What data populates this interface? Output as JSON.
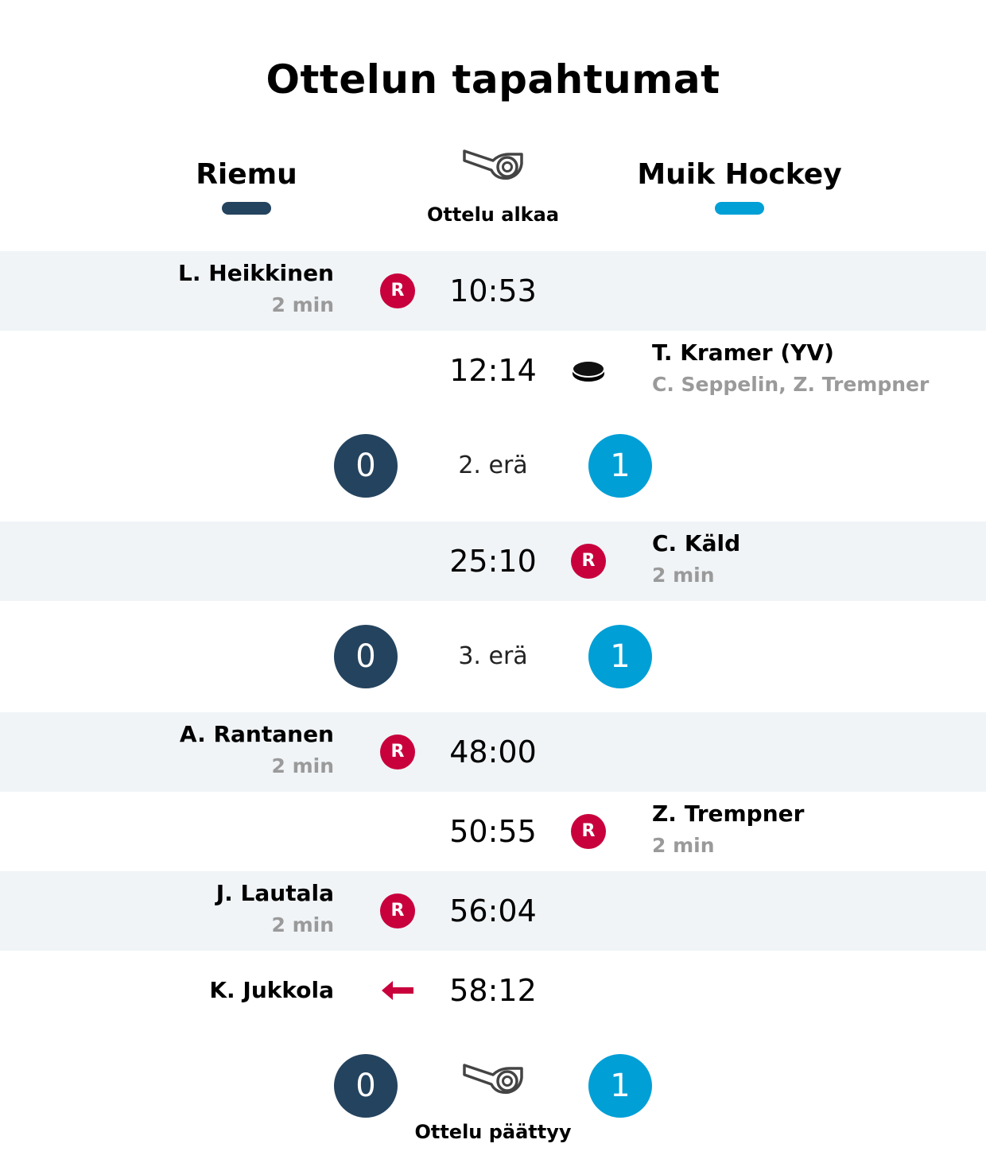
{
  "title": "Ottelun tapahtumat",
  "teams": {
    "home": {
      "name": "Riemu",
      "color": "#24435e"
    },
    "away": {
      "name": "Muik Hockey",
      "color": "#009fd6"
    }
  },
  "start": {
    "label": "Ottelu alkaa",
    "icon": "whistle-icon"
  },
  "events": [
    {
      "time": "10:53",
      "side": "home",
      "type": "penalty",
      "badge": "R",
      "name": "L. Heikkinen",
      "detail": "2 min"
    },
    {
      "time": "12:14",
      "side": "away",
      "type": "goal",
      "icon": "puck-icon",
      "name": "T. Kramer (YV)",
      "detail": "C. Seppelin, Z. Trempner"
    },
    {
      "time": "25:10",
      "side": "away",
      "type": "penalty",
      "badge": "R",
      "name": "C. Käld",
      "detail": "2 min"
    },
    {
      "time": "48:00",
      "side": "home",
      "type": "penalty",
      "badge": "R",
      "name": "A. Rantanen",
      "detail": "2 min"
    },
    {
      "time": "50:55",
      "side": "away",
      "type": "penalty",
      "badge": "R",
      "name": "Z. Trempner",
      "detail": "2 min"
    },
    {
      "time": "56:04",
      "side": "home",
      "type": "penalty",
      "badge": "R",
      "name": "J. Lautala",
      "detail": "2 min"
    },
    {
      "time": "58:12",
      "side": "home",
      "type": "goalie-out",
      "icon": "arrow-left-icon",
      "name": "K. Jukkola"
    }
  ],
  "period_breaks": [
    {
      "label": "2. erä",
      "home_score": "0",
      "away_score": "1"
    },
    {
      "label": "3. erä",
      "home_score": "0",
      "away_score": "1"
    }
  ],
  "end": {
    "label": "Ottelu päättyy",
    "icon": "whistle-icon",
    "home_score": "0",
    "away_score": "1"
  },
  "colors": {
    "penalty": "#c8003c",
    "row_shade": "#f0f4f7",
    "secondary_text": "#9a9a9a"
  }
}
